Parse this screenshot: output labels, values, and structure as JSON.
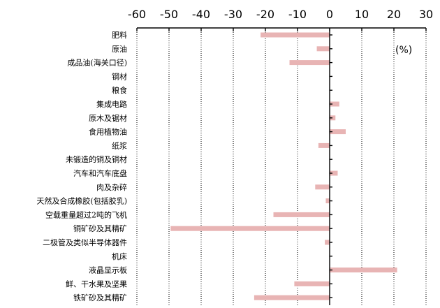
{
  "chart_data": {
    "type": "bar",
    "orientation": "horizontal",
    "title": "",
    "xlabel": "",
    "ylabel": "",
    "unit": "(%)",
    "xlim": [
      -60,
      30
    ],
    "xticks": [
      -60,
      -50,
      -40,
      -30,
      -20,
      -10,
      0,
      10,
      20,
      30
    ],
    "grid": "vertical dotted",
    "bar_color": "#e8b4b4",
    "categories": [
      "肥料",
      "原油",
      "成品油(海关口径)",
      "钢材",
      "粮食",
      "集成电路",
      "原木及锯材",
      "食用植物油",
      "纸浆",
      "未锻造的铜及铜材",
      "汽车和汽车底盘",
      "肉及杂碎",
      "天然及合成橡胶(包括胶乳)",
      "空载重量超过2吨的飞机",
      "铜矿砂及其精矿",
      "二极管及类似半导体器件",
      "机床",
      "液晶显示板",
      "鲜、干水果及坚果",
      "铁矿砂及其精矿"
    ],
    "values": [
      -21.5,
      -4.0,
      -12.5,
      0,
      0,
      3.0,
      1.8,
      5.0,
      -3.5,
      0,
      2.5,
      -4.5,
      -1.2,
      -17.5,
      -49.5,
      -1.5,
      0,
      21.0,
      -11.0,
      -23.5
    ]
  }
}
